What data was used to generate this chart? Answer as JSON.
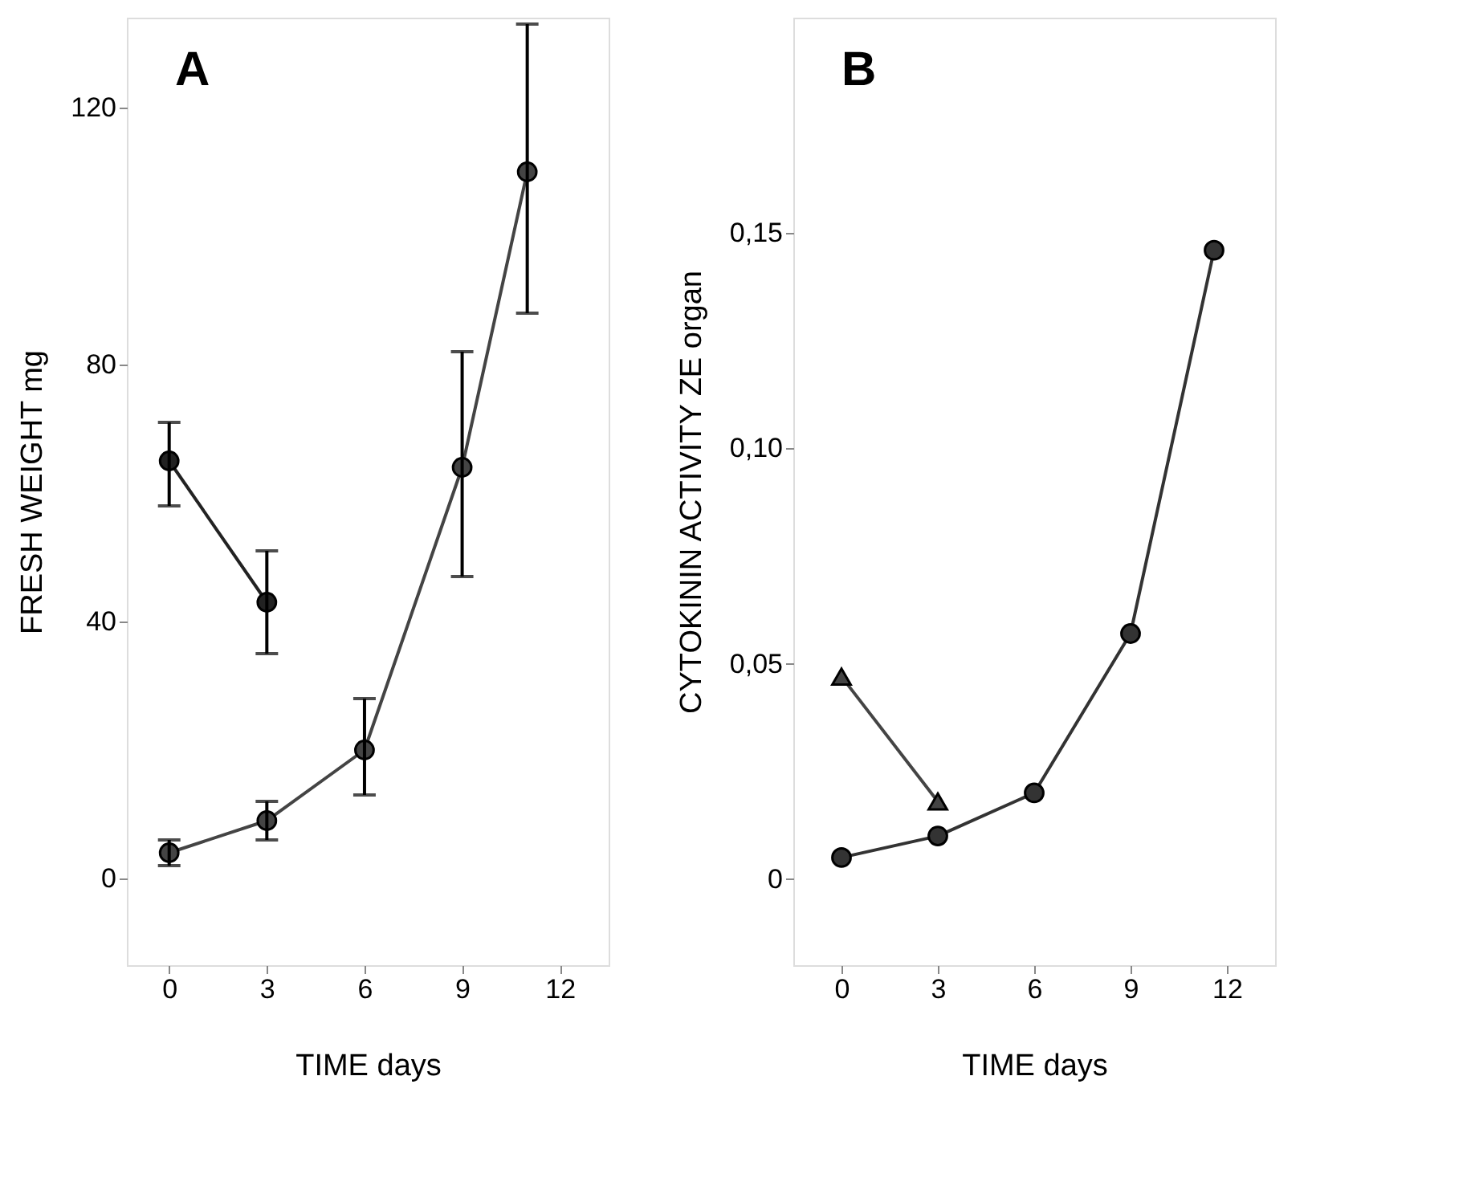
{
  "chart_data": [
    {
      "type": "line",
      "title": "A",
      "xlabel": "TIME    days",
      "ylabel": "FRESH WEIGHT            mg",
      "xlim": [
        -1.3,
        13.5
      ],
      "xticks": [
        0,
        3,
        6,
        9,
        12
      ],
      "ylim": [
        -13.5,
        134
      ],
      "yticks": [
        0,
        40,
        80,
        120
      ],
      "grid": false,
      "series": [
        {
          "color": "#222222",
          "marker": "circle",
          "x": [
            0,
            3
          ],
          "values": [
            65,
            43
          ],
          "errors": [
            [
              58,
              71
            ],
            [
              35,
              51
            ]
          ]
        },
        {
          "color": "#444444",
          "marker": "circle",
          "x": [
            0,
            3,
            6,
            9,
            11
          ],
          "values": [
            4,
            9,
            20,
            64,
            110
          ],
          "errors": [
            [
              2,
              6
            ],
            [
              6,
              12
            ],
            [
              13,
              28
            ],
            [
              47,
              82
            ],
            [
              88,
              133
            ]
          ]
        }
      ]
    },
    {
      "type": "line",
      "title": "B",
      "xlabel": "TIME    days",
      "ylabel": "CYTOKININ ACTIVITY ZE organ",
      "xlim": [
        -1.5,
        13.5
      ],
      "xticks": [
        0,
        3,
        6,
        9,
        12
      ],
      "ylim": [
        -0.02,
        0.2
      ],
      "yticks": [
        0,
        {
          "value": 0.05,
          "label": "0,05"
        },
        {
          "value": 0.1,
          "label": "0,10"
        },
        {
          "value": 0.15,
          "label": "0,15"
        }
      ],
      "grid": false,
      "series": [
        {
          "color": "#444444",
          "marker": "triangle",
          "x": [
            0,
            3
          ],
          "values": [
            0.047,
            0.018
          ]
        },
        {
          "color": "#333333",
          "marker": "circle",
          "x": [
            0,
            3,
            6,
            9,
            11.6
          ],
          "values": [
            0.005,
            0.01,
            0.02,
            0.057,
            0.146
          ]
        }
      ]
    }
  ]
}
